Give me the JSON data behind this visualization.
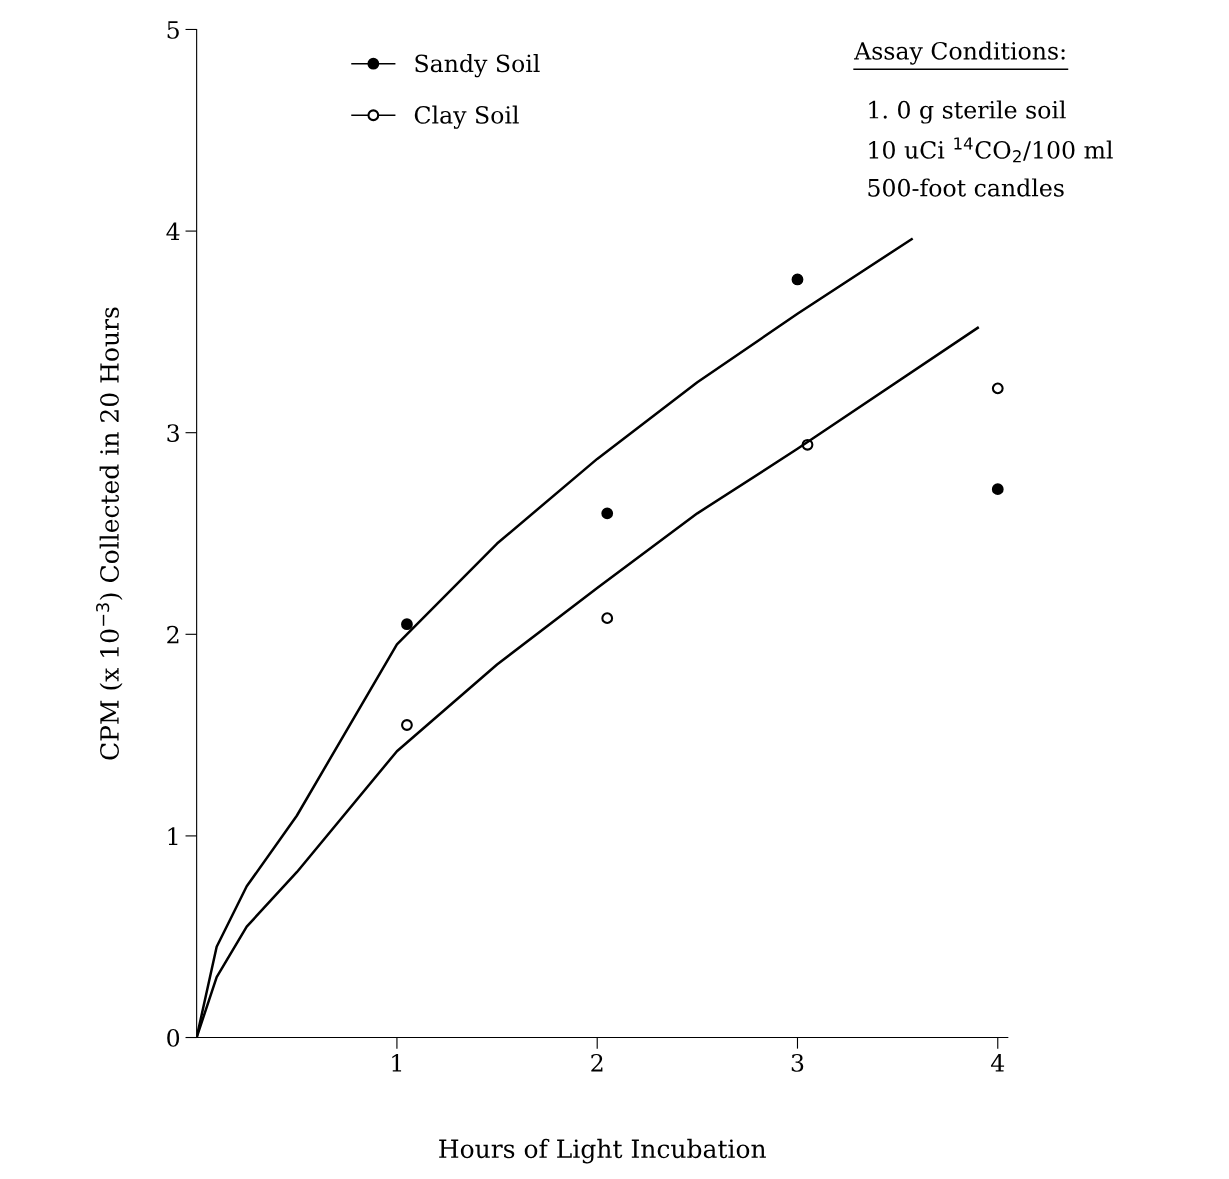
{
  "chart_data": {
    "type": "scatter",
    "xlabel": "Hours of Light Incubation",
    "ylabel": "CPM (x 10$^{−3}$) Collected in 20 Hours",
    "xlim": [
      0,
      4.05
    ],
    "ylim": [
      0,
      5
    ],
    "xticks": [
      1,
      2,
      3,
      4
    ],
    "yticks": [
      0,
      1,
      2,
      3,
      4,
      5
    ],
    "grid": false,
    "legend": "top left",
    "marker": "circle",
    "series": [
      {
        "name": "Sandy Soil",
        "color": "#000000",
        "x": [
          1.05,
          2.05,
          3.0,
          4.0
        ],
        "values": [
          2.05,
          2.6,
          3.76,
          2.72
        ]
      },
      {
        "name": "Clay Soil",
        "color": "#000000",
        "x": [
          1.05,
          2.05,
          3.05,
          4.0
        ],
        "values": [
          1.55,
          2.08,
          2.94,
          3.22
        ]
      },
      {
        "type": "line",
        "marker": "none",
        "color": "#000000",
        "x": [
          0,
          0.1,
          0.25,
          0.5,
          1,
          1.5,
          2,
          2.5,
          3,
          3.57
        ],
        "values": [
          0,
          0.45,
          0.75,
          1.1,
          1.95,
          2.45,
          2.87,
          3.25,
          3.59,
          3.96
        ]
      },
      {
        "type": "line",
        "marker": "none",
        "color": "#000000",
        "x": [
          0,
          0.1,
          0.25,
          0.5,
          1,
          1.5,
          2,
          2.5,
          3,
          3.9
        ],
        "values": [
          0,
          0.3,
          0.55,
          0.82,
          1.42,
          1.85,
          2.23,
          2.6,
          2.92,
          3.52
        ]
      }
    ],
    "annotations": [
      "Assay Conditions:",
      "1. 0 g sterile soil",
      "10 uCi $^{14}$CO$_{2}$/100 ml",
      "500-foot candles"
    ]
  }
}
